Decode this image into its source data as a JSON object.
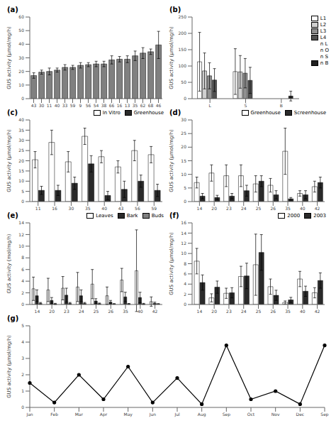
{
  "chart_data": [
    {
      "type": "bar",
      "title": "(a)",
      "ylabel": "GUS activity (μmol/mg/h)",
      "categories": [
        "43",
        "30",
        "11",
        "40",
        "33",
        "59",
        "9",
        "56",
        "54",
        "38",
        "66",
        "16",
        "13",
        "35",
        "62",
        "68",
        "46"
      ],
      "values": [
        17,
        19.5,
        20,
        21,
        23,
        23,
        24.5,
        25,
        25.5,
        25.5,
        28.5,
        29,
        29,
        31.5,
        33.5,
        34.5,
        39.5
      ],
      "errors": [
        2,
        1.5,
        2.5,
        1.5,
        2,
        1.5,
        2,
        1.5,
        2,
        2,
        3,
        2,
        2.5,
        3.5,
        4,
        2,
        10
      ],
      "color": "#808080",
      "ylim": [
        0,
        60
      ],
      "yticks": [
        0,
        10,
        20,
        30,
        40,
        50,
        60
      ],
      "grid": false
    },
    {
      "type": "bar",
      "title": "(b)",
      "ylabel": "GUS activity (μmol/mg/h)",
      "categories": [
        "L",
        "S",
        "B"
      ],
      "series": [
        {
          "name": "L1",
          "color": "#ffffff",
          "values": [
            113,
            83,
            null
          ],
          "errors": [
            90,
            70,
            null
          ]
        },
        {
          "name": "L2",
          "color": "#d0d0d0",
          "values": [
            85,
            82,
            null
          ],
          "errors": [
            55,
            50,
            null
          ]
        },
        {
          "name": "L3",
          "color": "#909090",
          "values": [
            70,
            78,
            null
          ],
          "errors": [
            40,
            45,
            null
          ]
        },
        {
          "name": "L4",
          "color": "#505050",
          "values": [
            57,
            56,
            null
          ],
          "errors": [
            35,
            40,
            null
          ]
        },
        {
          "name": "n L",
          "values": [
            null,
            null,
            null
          ]
        },
        {
          "name": "n O",
          "values": [
            null,
            null,
            null
          ]
        },
        {
          "name": "n S",
          "values": [
            null,
            null,
            null
          ]
        },
        {
          "name": "n B",
          "color": "#202020",
          "values": [
            null,
            null,
            8
          ],
          "errors": [
            null,
            null,
            15
          ]
        }
      ],
      "ylim": [
        0,
        250
      ],
      "yticks": [
        0,
        50,
        100,
        150,
        200,
        250
      ],
      "legend": "upper right",
      "grid": false
    },
    {
      "type": "bar",
      "title": "(c)",
      "ylabel": "GUS activity (μmol/mg/h)",
      "categories": [
        "11",
        "16",
        "30",
        "35",
        "40",
        "43",
        "56",
        "59"
      ],
      "series": [
        {
          "name": "In Vitro",
          "color": "#ffffff",
          "values": [
            20.5,
            29,
            19.5,
            32,
            22,
            17,
            25,
            23
          ],
          "errors": [
            4,
            6,
            5,
            4,
            3,
            3,
            5,
            4
          ]
        },
        {
          "name": "Greenhouse",
          "color": "#2a2a2a",
          "values": [
            5.5,
            5.5,
            9,
            18.5,
            3,
            6,
            10,
            5.5
          ],
          "errors": [
            2,
            2.5,
            3,
            4,
            2,
            4,
            3,
            3
          ]
        }
      ],
      "ylim": [
        0,
        40
      ],
      "yticks": [
        0,
        5,
        10,
        15,
        20,
        25,
        30,
        35,
        40
      ],
      "legend": "upper right",
      "grid": false
    },
    {
      "type": "bar",
      "title": "(d)",
      "ylabel": "GUS activity (μmol/mg/h)",
      "categories": [
        "14",
        "20",
        "23",
        "24",
        "25",
        "26",
        "35",
        "40",
        "42"
      ],
      "series": [
        {
          "name": "Greenhouse",
          "color": "#ffffff",
          "values": [
            7,
            10.5,
            9.5,
            9.5,
            6.5,
            6,
            18.5,
            3,
            5.5
          ],
          "errors": [
            2,
            3,
            4,
            4,
            3,
            2.5,
            8.5,
            1,
            2
          ]
        },
        {
          "name": "Screenhouse",
          "color": "#2a2a2a",
          "values": [
            2,
            1.5,
            2,
            4,
            7.5,
            2.5,
            1,
            2.5,
            7
          ],
          "errors": [
            1,
            0.8,
            1,
            2,
            2,
            1.5,
            0.5,
            1.5,
            2
          ]
        }
      ],
      "ylim": [
        0,
        30
      ],
      "yticks": [
        0,
        5,
        10,
        15,
        20,
        25,
        30
      ],
      "legend": "upper right",
      "grid": false
    },
    {
      "type": "bar",
      "title": "(e)",
      "ylabel": "GUS activity (mol/mg/h)",
      "categories": [
        "14",
        "20",
        "23",
        "24",
        "25",
        "26",
        "35",
        "40",
        "42"
      ],
      "series": [
        {
          "name": "Leaves",
          "color": "#ffffff",
          "values": [
            2.7,
            2.5,
            2.8,
            3.0,
            3.5,
            1.5,
            4.2,
            5.8,
            0.5
          ],
          "errors": [
            2.0,
            2.0,
            2.0,
            2.5,
            2.5,
            1.5,
            2.0,
            7.0,
            0.8
          ]
        },
        {
          "name": "Bark",
          "color": "#2a2a2a",
          "values": [
            1.5,
            0.7,
            1.6,
            1.5,
            0.6,
            0.4,
            1.3,
            1.2,
            0.2
          ],
          "errors": [
            1.0,
            0.5,
            1.2,
            1.0,
            0.4,
            0.3,
            0.8,
            0.9,
            0.2
          ]
        },
        {
          "name": "Buds",
          "color": "#808080",
          "values": [
            0.2,
            0.1,
            0.2,
            0.2,
            0.15,
            0.1,
            0.1,
            0.1,
            0.1
          ],
          "errors": [
            0.15,
            0.1,
            0.15,
            0.15,
            0.1,
            0.05,
            0.08,
            0.1,
            0.05
          ]
        }
      ],
      "ylim": [
        0,
        14
      ],
      "yticks": [
        0,
        2,
        4,
        6,
        8,
        10,
        12,
        14
      ],
      "legend": "upper right",
      "grid": false
    },
    {
      "type": "bar",
      "title": "(f)",
      "ylabel": "GUS activity (μmol/mg/h)",
      "categories": [
        "14",
        "20",
        "23",
        "24",
        "25",
        "26",
        "35",
        "40",
        "42"
      ],
      "series": [
        {
          "name": "2000",
          "color": "#ffffff",
          "values": [
            8.5,
            1.3,
            2.2,
            5.5,
            7.8,
            3.5,
            0.4,
            5.0,
            2.3
          ],
          "errors": [
            2.5,
            0.8,
            1.0,
            2.0,
            6.0,
            1.5,
            0.3,
            1.5,
            1.0
          ]
        },
        {
          "name": "2003",
          "color": "#2a2a2a",
          "values": [
            4.3,
            3.4,
            2.3,
            5.6,
            10.2,
            1.8,
            0.9,
            2.6,
            4.7
          ],
          "errors": [
            1.5,
            1.2,
            1.0,
            2.5,
            3.5,
            1.0,
            0.5,
            1.0,
            1.5
          ]
        }
      ],
      "ylim": [
        0,
        16
      ],
      "yticks": [
        0,
        2,
        4,
        6,
        8,
        10,
        12,
        14,
        16
      ],
      "legend": "upper right",
      "grid": false
    },
    {
      "type": "line",
      "title": "(g)",
      "ylabel": "GUS activity (μmol/mg/h)",
      "categories": [
        "Jan",
        "Feb",
        "Mar",
        "Apr",
        "May",
        "Jun",
        "Jul",
        "Aug",
        "Sep",
        "Oct",
        "Nov",
        "Dec",
        "Sep"
      ],
      "values": [
        1.5,
        0.3,
        2.0,
        0.5,
        2.5,
        0.3,
        1.8,
        0.2,
        3.8,
        0.5,
        1.0,
        0.2,
        3.8
      ],
      "color": "#000000",
      "marker": "circle",
      "ylim": [
        0,
        5
      ],
      "yticks": [
        0,
        1,
        2,
        3,
        4,
        5
      ],
      "grid": false
    }
  ]
}
